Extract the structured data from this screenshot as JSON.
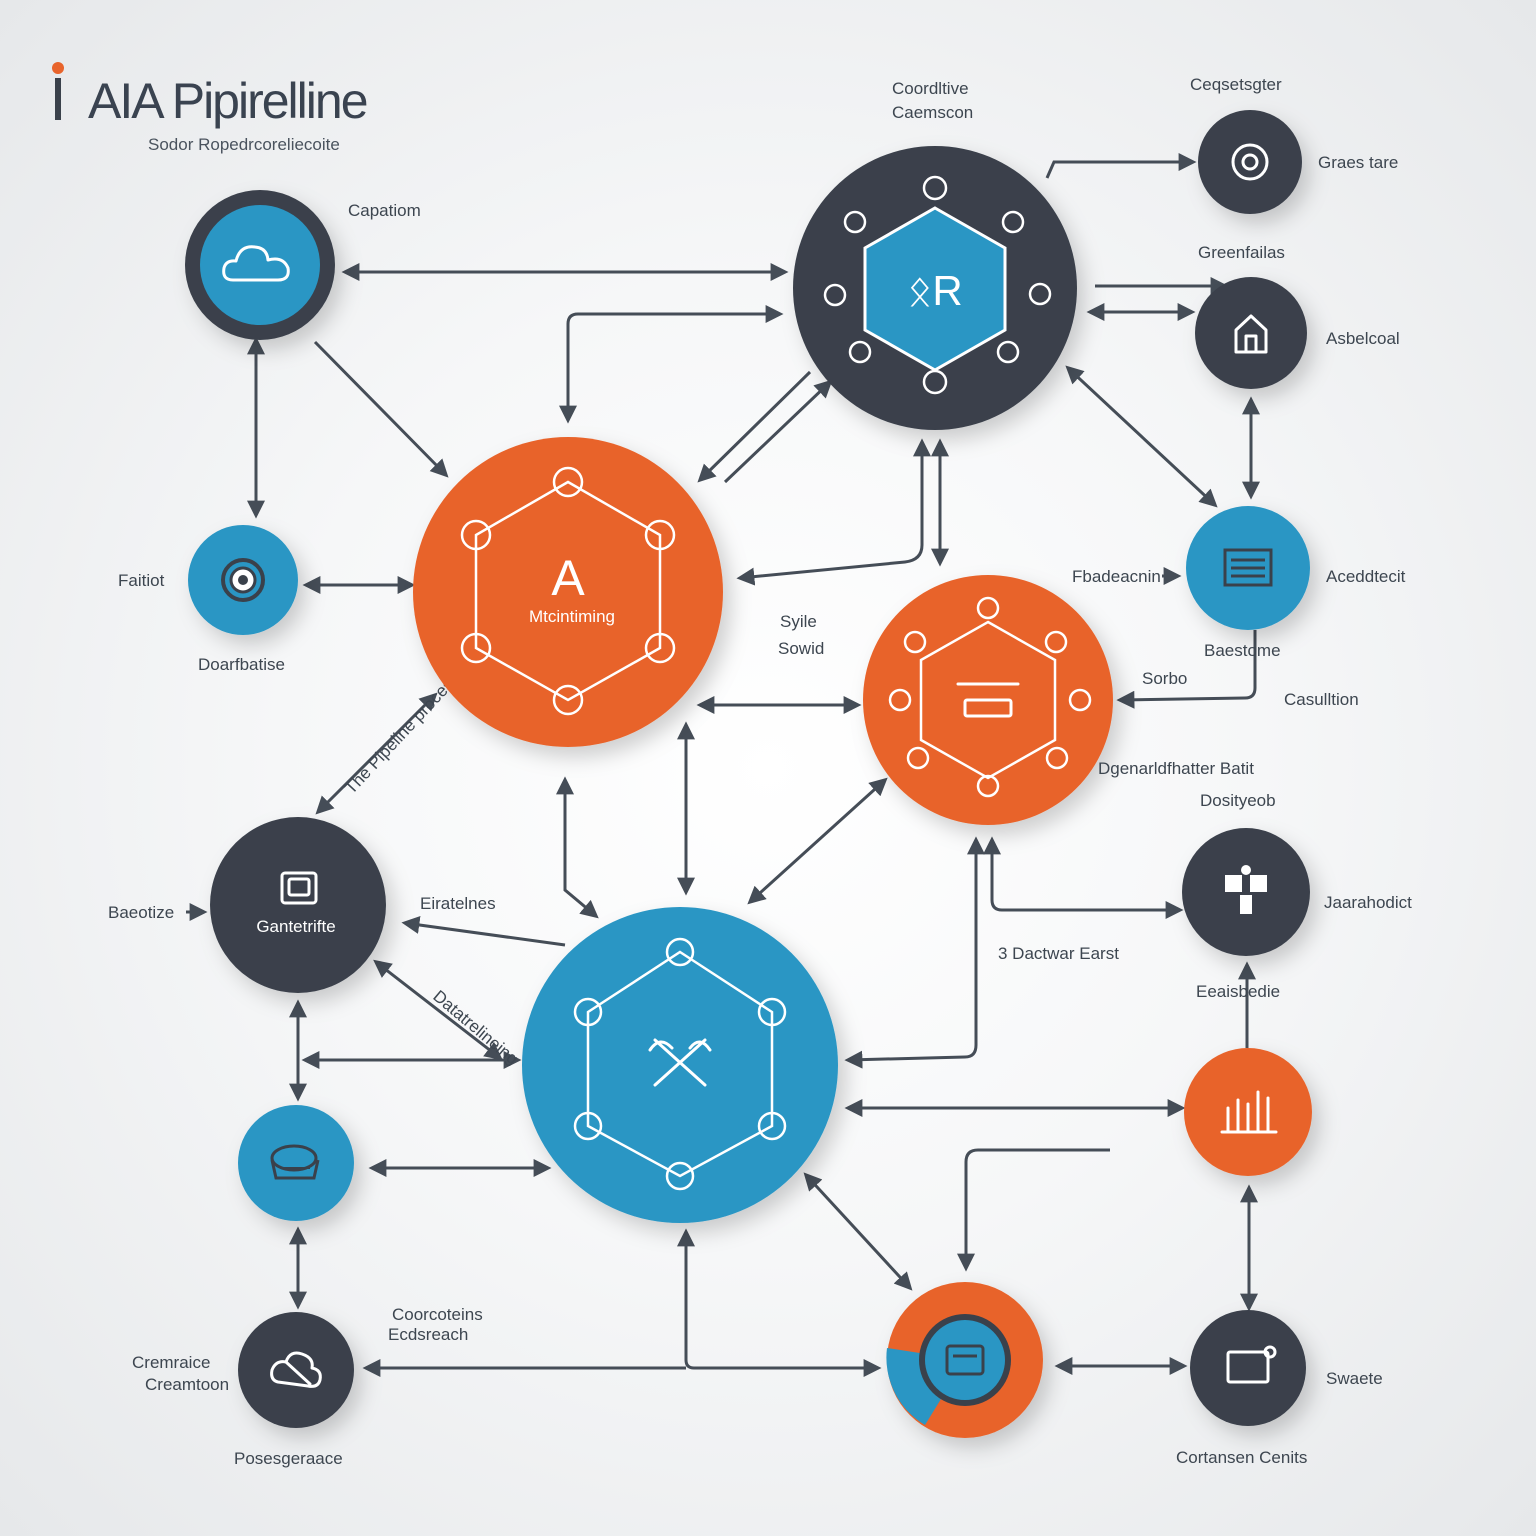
{
  "header": {
    "title": "AIA Pipirelline",
    "subtitle": "Sodor Ropedrcoreliecoite"
  },
  "colors": {
    "navy": "#3a414b",
    "blue": "#2a96c4",
    "orange": "#e8642c",
    "line": "#454d57"
  },
  "hubs": {
    "orange_main": {
      "letter": "A",
      "caption": "Mtcintiming",
      "icon": "hexagon-network-icon"
    },
    "navy_top": {
      "letters": "ᛟR",
      "icon": "hexagon-network-icon"
    },
    "orange_right": {
      "icon": "server-icon"
    },
    "blue_bottom": {
      "icon": "tools-icon"
    }
  },
  "nodes": {
    "cloud": {
      "icon": "cloud-icon"
    },
    "target": {
      "icon": "target-icon"
    },
    "box": {
      "icon": "box-icon",
      "caption": "Gantetrifte"
    },
    "basket": {
      "icon": "basket-icon"
    },
    "cloud_cross": {
      "icon": "cloud-x-icon"
    },
    "top_right_gear": {
      "icon": "gear-icon"
    },
    "house": {
      "icon": "house-icon"
    },
    "document": {
      "icon": "document-icon"
    },
    "puzzle": {
      "icon": "puzzle-icon"
    },
    "bar_chart": {
      "icon": "bar-chart-icon"
    },
    "screen": {
      "icon": "screen-icon"
    },
    "monitor": {
      "icon": "monitor-icon"
    }
  },
  "labels": {
    "capatom": "Capatiom",
    "faitiot": "Faitiot",
    "doarfbatise": "Doarfbatise",
    "baeotine": "Baeotize",
    "elaterlnes": "Eiratelnes",
    "consolive": "Coordltive",
    "caemscon": "Caemscon",
    "cegsesgter": "Ceqsetsgter",
    "grecs_tare": "Graes tare",
    "greefaitalis": "Greenfailas",
    "asbeleal": "Asbelcoal",
    "fbadeacnin": "Fbadeacnin",
    "acedebicit": "Aceddtecit",
    "syile": "Syile",
    "sould": "Sowid",
    "baestome": "Baestome",
    "sorbo": "Sorbo",
    "casulition": "Casulltion",
    "dgsenar": "Dgenarldfhatter Batit",
    "dosityeob": "Dosityeob",
    "jaarahodict": "Jaarahodict",
    "d_doctwar": "3 Dactwar Earst",
    "eeaisbedie": "Eeaisbedie",
    "coorateins": "Coorcoteins",
    "ecdsreach": "Ecdsreach",
    "cremraice": "Cremraice",
    "creamtan": "Creamtoon",
    "posesgeraace": "Posesgeraace",
    "swaete": "Swaete",
    "cortansen": "Cortansen Cenits",
    "arrow_text_1": "The Pipeline processing stage",
    "arrow_text_2": "Datatrelineing"
  }
}
